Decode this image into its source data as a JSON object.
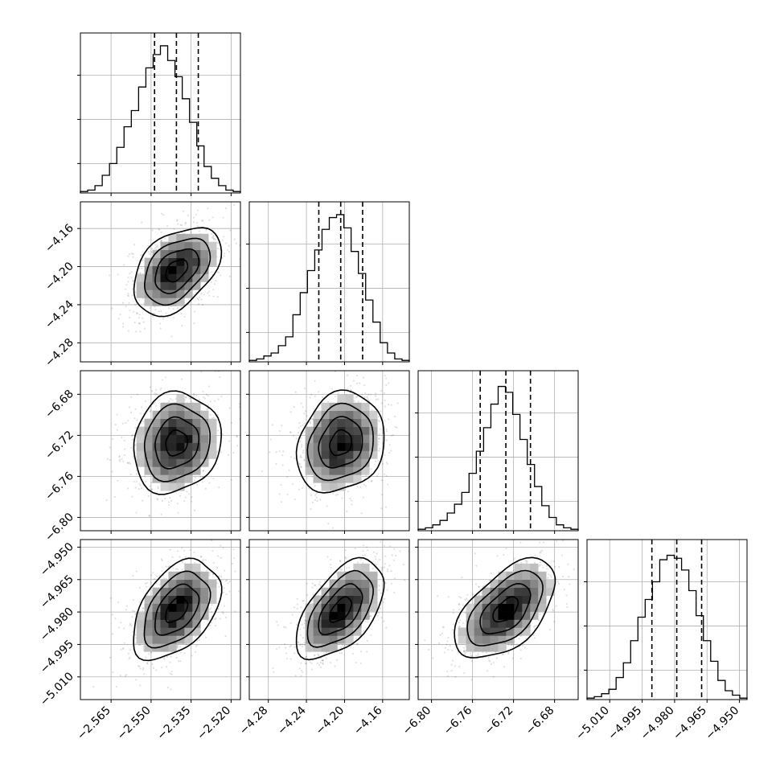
{
  "chart_data": {
    "type": "corner",
    "parameters": [
      {
        "ticks": [
          -2.565,
          -2.55,
          -2.535,
          -2.52
        ],
        "tick_labels": [
          "−2.565",
          "−2.550",
          "−2.535",
          "−2.520"
        ],
        "range": [
          -2.5765,
          -2.5165
        ],
        "quantiles": [
          -2.5487,
          -2.5405,
          -2.5323
        ],
        "hist": [
          0.01,
          0.02,
          0.05,
          0.12,
          0.2,
          0.31,
          0.45,
          0.56,
          0.72,
          0.85,
          0.94,
          1.0,
          0.9,
          0.79,
          0.64,
          0.48,
          0.32,
          0.18,
          0.1,
          0.05,
          0.02,
          0.01
        ]
      },
      {
        "ticks": [
          -4.28,
          -4.24,
          -4.2,
          -4.16
        ],
        "tick_labels": [
          "−4.28",
          "−4.24",
          "−4.20",
          "−4.16"
        ],
        "range": [
          -4.3,
          -4.132
        ],
        "quantiles": [
          -4.227,
          -4.204,
          -4.181
        ],
        "hist": [
          0.01,
          0.02,
          0.04,
          0.06,
          0.11,
          0.17,
          0.32,
          0.47,
          0.62,
          0.76,
          0.9,
          0.98,
          1.0,
          0.91,
          0.75,
          0.6,
          0.42,
          0.27,
          0.13,
          0.06,
          0.02,
          0.01
        ]
      },
      {
        "ticks": [
          -6.8,
          -6.76,
          -6.72,
          -6.68
        ],
        "tick_labels": [
          "−6.80",
          "−6.76",
          "−6.72",
          "−6.68"
        ],
        "range": [
          -6.813,
          -6.657
        ],
        "quantiles": [
          -6.7525,
          -6.7275,
          -6.7035
        ],
        "hist": [
          0.01,
          0.02,
          0.04,
          0.07,
          0.12,
          0.18,
          0.26,
          0.39,
          0.54,
          0.7,
          0.86,
          0.98,
          0.94,
          0.79,
          0.62,
          0.45,
          0.3,
          0.17,
          0.09,
          0.04,
          0.02,
          0.01
        ]
      },
      {
        "ticks": [
          -5.01,
          -4.995,
          -4.98,
          -4.965,
          -4.95
        ],
        "tick_labels": [
          "−5.010",
          "−4.995",
          "−4.980",
          "−4.965",
          "−4.950"
        ],
        "range": [
          -5.0205,
          -4.9465
        ],
        "quantiles": [
          -4.9905,
          -4.979,
          -4.9675
        ],
        "hist": [
          0.01,
          0.02,
          0.04,
          0.07,
          0.15,
          0.25,
          0.4,
          0.56,
          0.68,
          0.8,
          0.95,
          0.98,
          0.96,
          0.88,
          0.74,
          0.57,
          0.4,
          0.26,
          0.13,
          0.06,
          0.03,
          0.01
        ]
      }
    ],
    "grid": true
  }
}
